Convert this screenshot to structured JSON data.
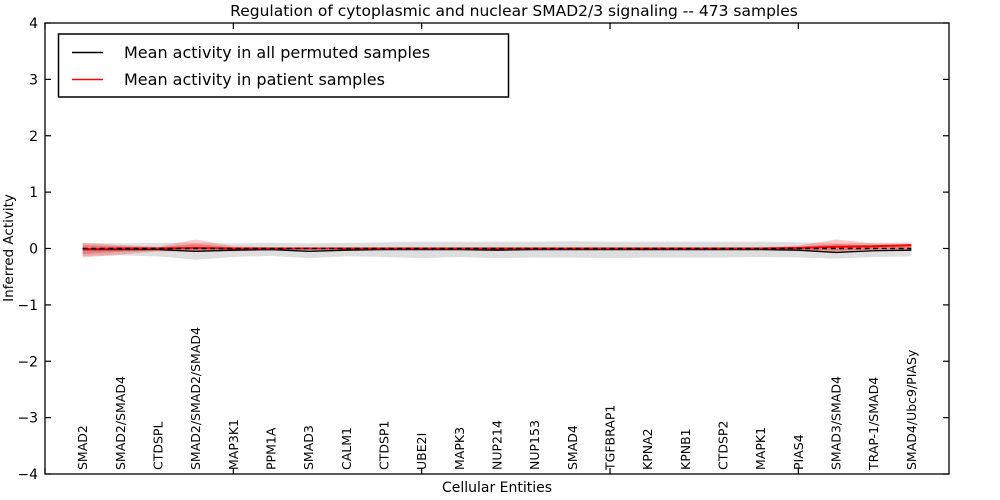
{
  "figure": {
    "title": "Regulation of cytoplasmic and nuclear SMAD2/3 signaling -- 473 samples",
    "xlabel": "Cellular Entities",
    "ylabel": "Inferred Activity",
    "legend": [
      {
        "label": "Mean activity in all permuted samples",
        "color": "#000000"
      },
      {
        "label": "Mean activity in patient samples",
        "color": "#ff0000"
      }
    ],
    "colors": {
      "permuted_line": "#000000",
      "patient_line": "#ff0000",
      "permuted_band": "#000000",
      "patient_band": "#ff0000",
      "frame": "#000000",
      "background": "#ffffff"
    }
  },
  "chart_data": {
    "type": "line",
    "title": "Regulation of cytoplasmic and nuclear SMAD2/3 signaling -- 473 samples",
    "xlabel": "Cellular Entities",
    "ylabel": "Inferred Activity",
    "ylim": [
      -4,
      4
    ],
    "yticks": [
      -4,
      -3,
      -2,
      -1,
      0,
      1,
      2,
      3,
      4
    ],
    "yticklabels": [
      "−4",
      "−3",
      "−2",
      "−1",
      "0",
      "1",
      "2",
      "3",
      "4"
    ],
    "xticks_unlabeled_positions": [
      0,
      5,
      10,
      15,
      20
    ],
    "grid": false,
    "legend_position": "upper left",
    "reference_line_y": 0,
    "categories": [
      "SMAD2",
      "SMAD2/SMAD4",
      "CTDSPL",
      "SMAD2/SMAD2/SMAD4",
      "MAP3K1",
      "PPM1A",
      "SMAD3",
      "CALM1",
      "CTDSP1",
      "UBE2I",
      "MAPK3",
      "NUP214",
      "NUP153",
      "SMAD4",
      "TGFBRAP1",
      "KPNA2",
      "KPNB1",
      "CTDSP2",
      "MAPK1",
      "PIAS4",
      "SMAD3/SMAD4",
      "TRAP-1/SMAD4",
      "SMAD4/Ubc9/PIASy"
    ],
    "series": [
      {
        "name": "Mean activity in all permuted samples",
        "color": "#000000",
        "style": "solid",
        "values": [
          -0.02,
          -0.02,
          -0.02,
          -0.05,
          -0.03,
          -0.02,
          -0.05,
          -0.03,
          -0.02,
          -0.02,
          -0.02,
          -0.03,
          -0.02,
          -0.02,
          -0.02,
          -0.02,
          -0.02,
          -0.02,
          -0.02,
          -0.03,
          -0.07,
          -0.04,
          -0.03
        ]
      },
      {
        "name": "Mean activity in patient samples",
        "color": "#ff0000",
        "style": "solid",
        "values": [
          -0.01,
          0.0,
          0.0,
          0.01,
          0.0,
          0.0,
          0.0,
          0.0,
          0.0,
          0.0,
          0.0,
          0.0,
          0.0,
          0.0,
          0.0,
          0.0,
          0.0,
          0.0,
          0.0,
          0.01,
          0.03,
          0.04,
          0.06
        ]
      }
    ],
    "bands": [
      {
        "name": "permuted-std-band",
        "color": "#000000",
        "opacity": 0.13,
        "upper": [
          0.1,
          0.09,
          0.1,
          0.1,
          0.09,
          0.1,
          0.09,
          0.1,
          0.11,
          0.12,
          0.12,
          0.12,
          0.12,
          0.13,
          0.12,
          0.12,
          0.12,
          0.12,
          0.12,
          0.11,
          0.09,
          0.1,
          0.11
        ],
        "lower": [
          -0.13,
          -0.12,
          -0.14,
          -0.2,
          -0.15,
          -0.13,
          -0.17,
          -0.14,
          -0.15,
          -0.17,
          -0.15,
          -0.17,
          -0.16,
          -0.16,
          -0.17,
          -0.16,
          -0.16,
          -0.16,
          -0.15,
          -0.16,
          -0.18,
          -0.15,
          -0.14
        ]
      },
      {
        "name": "patient-std-band-outer",
        "color": "#ff0000",
        "opacity": 0.22,
        "upper": [
          0.1,
          0.06,
          0.03,
          0.16,
          0.04,
          0.02,
          0.02,
          0.02,
          0.02,
          0.02,
          0.02,
          0.02,
          0.02,
          0.02,
          0.02,
          0.02,
          0.02,
          0.02,
          0.02,
          0.05,
          0.16,
          0.09,
          0.08
        ],
        "lower": [
          -0.16,
          -0.11,
          -0.05,
          -0.05,
          -0.05,
          -0.03,
          -0.03,
          -0.02,
          -0.02,
          -0.02,
          -0.02,
          -0.02,
          -0.02,
          -0.02,
          -0.02,
          -0.02,
          -0.02,
          -0.02,
          -0.02,
          -0.04,
          -0.06,
          -0.03,
          -0.02
        ]
      },
      {
        "name": "patient-std-band-inner",
        "color": "#ff0000",
        "opacity": 0.28,
        "upper": [
          0.06,
          0.04,
          0.02,
          0.08,
          0.02,
          0.01,
          0.01,
          0.01,
          0.01,
          0.01,
          0.01,
          0.01,
          0.01,
          0.01,
          0.01,
          0.01,
          0.01,
          0.01,
          0.01,
          0.03,
          0.08,
          0.05,
          0.07
        ],
        "lower": [
          -0.1,
          -0.06,
          -0.03,
          -0.03,
          -0.03,
          -0.02,
          -0.02,
          -0.01,
          -0.01,
          -0.01,
          -0.01,
          -0.01,
          -0.01,
          -0.01,
          -0.01,
          -0.01,
          -0.01,
          -0.01,
          -0.01,
          -0.02,
          -0.04,
          -0.02,
          -0.01
        ]
      }
    ]
  }
}
